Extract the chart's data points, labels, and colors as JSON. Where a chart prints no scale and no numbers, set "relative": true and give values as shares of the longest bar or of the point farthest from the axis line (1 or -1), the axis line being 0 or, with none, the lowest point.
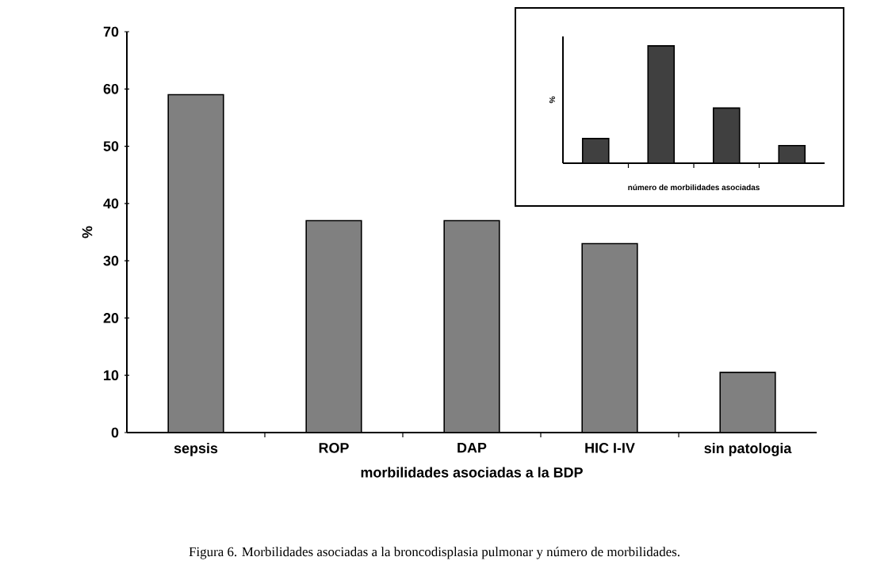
{
  "chart_data": [
    {
      "type": "bar",
      "xlabel": "morbilidades asociadas a la BDP",
      "ylabel": "%",
      "categories": [
        "sepsis",
        "ROP",
        "DAP",
        "HIC I-IV",
        "sin patologia"
      ],
      "values": [
        59,
        37,
        37,
        33,
        10.5
      ],
      "color": "#808080",
      "ylim": [
        0,
        70
      ],
      "yticks": [
        0,
        10,
        20,
        30,
        40,
        50,
        60,
        70
      ],
      "annotations": [
        "Figura 6. Morbilidades asociadas a la broncodisplasia pulmonar y número de morbilidades."
      ]
    },
    {
      "type": "bar",
      "relative": true,
      "xlabel": "número de morbilidades asociadas",
      "ylabel": "%",
      "categories": [
        null,
        null,
        null,
        null
      ],
      "values": [
        0.21,
        1,
        0.47,
        0.15
      ],
      "color": "#404040"
    }
  ]
}
